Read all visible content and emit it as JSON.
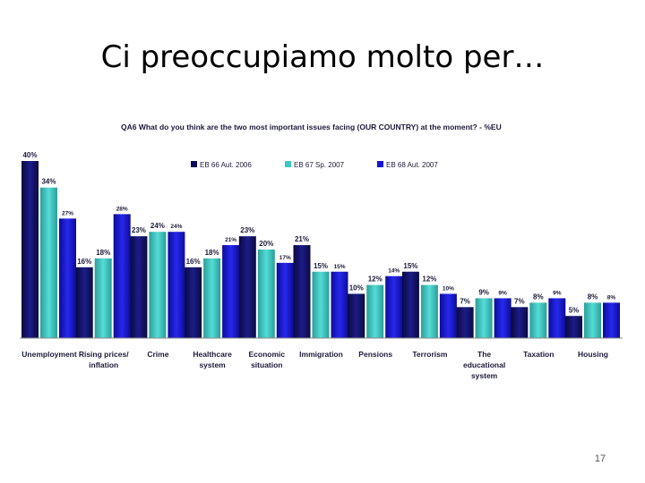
{
  "slide": {
    "title": "Ci preoccupiamo molto per…",
    "page_number": "17"
  },
  "chart_data": {
    "type": "bar",
    "title": "QA6 What do you think are the two most important issues facing (OUR COUNTRY) at the moment? - %EU",
    "categories": [
      [
        "Unemployment"
      ],
      [
        "Rising prices/",
        "inflation"
      ],
      [
        "Crime"
      ],
      [
        "Healthcare",
        "system"
      ],
      [
        "Economic",
        "situation"
      ],
      [
        "Immigration"
      ],
      [
        "Pensions"
      ],
      [
        "Terrorism"
      ],
      [
        "The",
        "educational",
        "system"
      ],
      [
        "Taxation"
      ],
      [
        "Housing"
      ]
    ],
    "series": [
      {
        "name": "EB 66 Aut. 2006",
        "color": "#0d0d5e",
        "values": [
          40,
          16,
          23,
          16,
          23,
          21,
          10,
          15,
          7,
          7,
          5
        ]
      },
      {
        "name": "EB 67 Sp. 2007",
        "color": "#3cc7c2",
        "values": [
          34,
          18,
          24,
          18,
          20,
          15,
          12,
          12,
          9,
          8,
          8
        ]
      },
      {
        "name": "EB 68 Aut. 2007",
        "color": "#1414d2",
        "values": [
          27,
          28,
          24,
          21,
          17,
          15,
          14,
          10,
          9,
          9,
          8
        ]
      }
    ],
    "ylim": [
      0,
      40
    ],
    "grid": false,
    "legend_position": "top-center"
  }
}
